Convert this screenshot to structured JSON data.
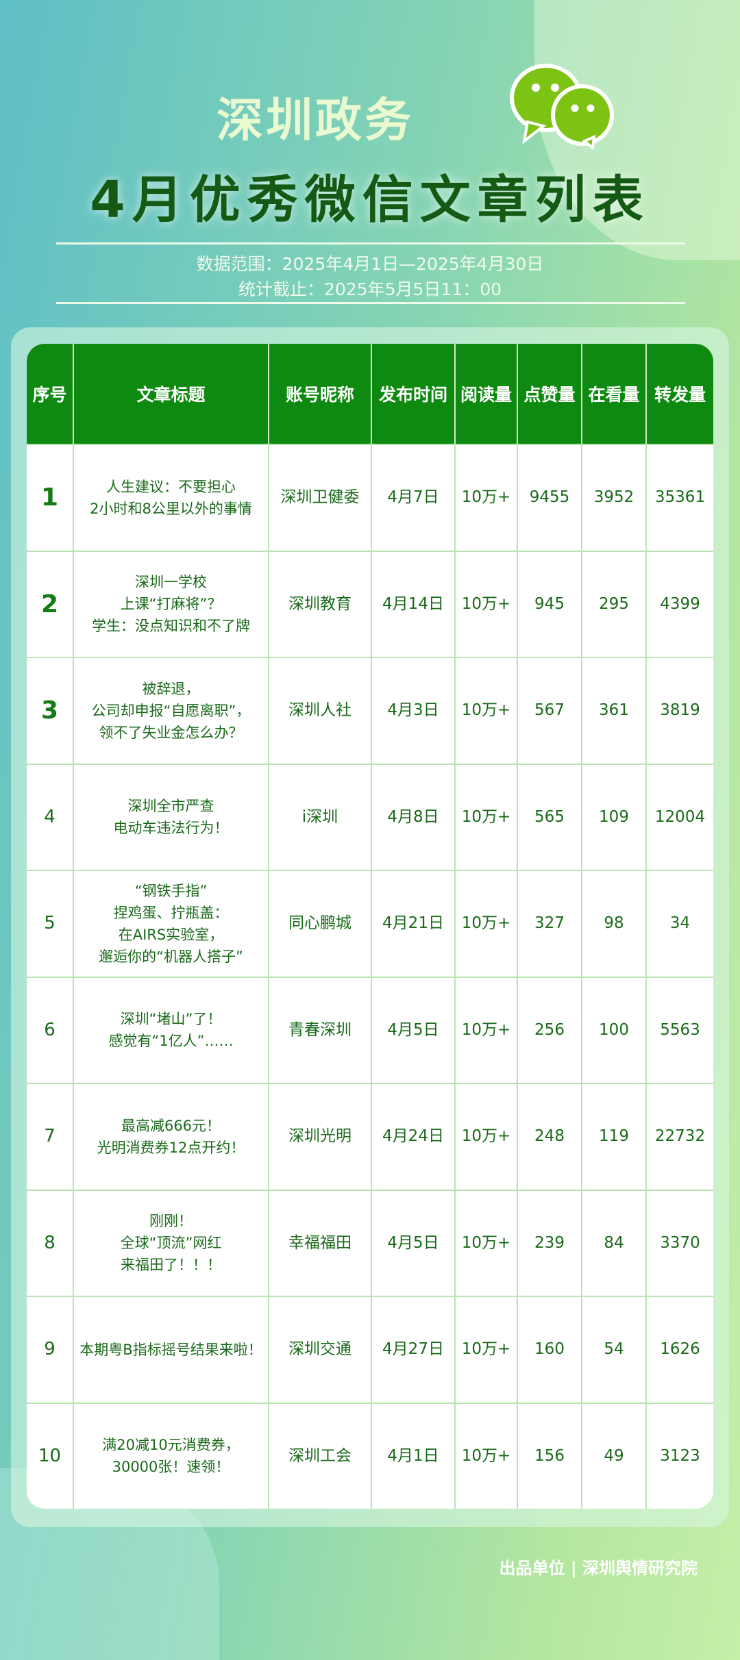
{
  "header": {
    "brand": "深圳政务",
    "title": "4月优秀微信文章列表",
    "range": "数据范围：2025年4月1日—2025年4月30日",
    "cutoff": "统计截止：2025年5月5日11：00",
    "logo_icon": "wechat-icon"
  },
  "table": {
    "columns": [
      "序号",
      "文章标题",
      "账号昵称",
      "发布时间",
      "阅读量",
      "点赞量",
      "在看量",
      "转发量"
    ],
    "rows": [
      {
        "rank": "1",
        "title": [
          "人生建议：不要担心",
          "2小时和8公里以外的事情"
        ],
        "account": "深圳卫健委",
        "date": "4月7日",
        "reads": "10万+",
        "likes": "9455",
        "watching": "3952",
        "shares": "35361"
      },
      {
        "rank": "2",
        "title": [
          "深圳一学校",
          "上课“打麻将”？",
          "学生：没点知识和不了牌"
        ],
        "account": "深圳教育",
        "date": "4月14日",
        "reads": "10万+",
        "likes": "945",
        "watching": "295",
        "shares": "4399"
      },
      {
        "rank": "3",
        "title": [
          "被辞退，",
          "公司却申报“自愿离职”，",
          "领不了失业金怎么办？"
        ],
        "account": "深圳人社",
        "date": "4月3日",
        "reads": "10万+",
        "likes": "567",
        "watching": "361",
        "shares": "3819"
      },
      {
        "rank": "4",
        "title": [
          "深圳全市严查",
          "电动车违法行为！"
        ],
        "account": "i深圳",
        "date": "4月8日",
        "reads": "10万+",
        "likes": "565",
        "watching": "109",
        "shares": "12004"
      },
      {
        "rank": "5",
        "title": [
          "“钢铁手指”",
          "捏鸡蛋、拧瓶盖：",
          "在AIRS实验室，",
          "邂逅你的“机器人搭子”"
        ],
        "account": "同心鹏城",
        "date": "4月21日",
        "reads": "10万+",
        "likes": "327",
        "watching": "98",
        "shares": "34"
      },
      {
        "rank": "6",
        "title": [
          "深圳“堵山”了！",
          "感觉有“1亿人”……"
        ],
        "account": "青春深圳",
        "date": "4月5日",
        "reads": "10万+",
        "likes": "256",
        "watching": "100",
        "shares": "5563"
      },
      {
        "rank": "7",
        "title": [
          "最高减666元！",
          "光明消费券12点开约！"
        ],
        "account": "深圳光明",
        "date": "4月24日",
        "reads": "10万+",
        "likes": "248",
        "watching": "119",
        "shares": "22732"
      },
      {
        "rank": "8",
        "title": [
          "刚刚！",
          "全球“顶流”网红",
          "来福田了！！！"
        ],
        "account": "幸福福田",
        "date": "4月5日",
        "reads": "10万+",
        "likes": "239",
        "watching": "84",
        "shares": "3370"
      },
      {
        "rank": "9",
        "title": [
          "本期粤B指标摇号结果来啦！"
        ],
        "account": "深圳交通",
        "date": "4月27日",
        "reads": "10万+",
        "likes": "160",
        "watching": "54",
        "shares": "1626"
      },
      {
        "rank": "10",
        "title": [
          "满20减10元消费券，",
          "30000张！速领！"
        ],
        "account": "深圳工会",
        "date": "4月1日",
        "reads": "10万+",
        "likes": "156",
        "watching": "49",
        "shares": "3123"
      }
    ]
  },
  "footer": {
    "text": "出品单位 | 深圳舆情研究院"
  },
  "colors": {
    "header_green": "#0e8a10",
    "text_green": "#1a6a1a",
    "title_green": "#145a14"
  }
}
